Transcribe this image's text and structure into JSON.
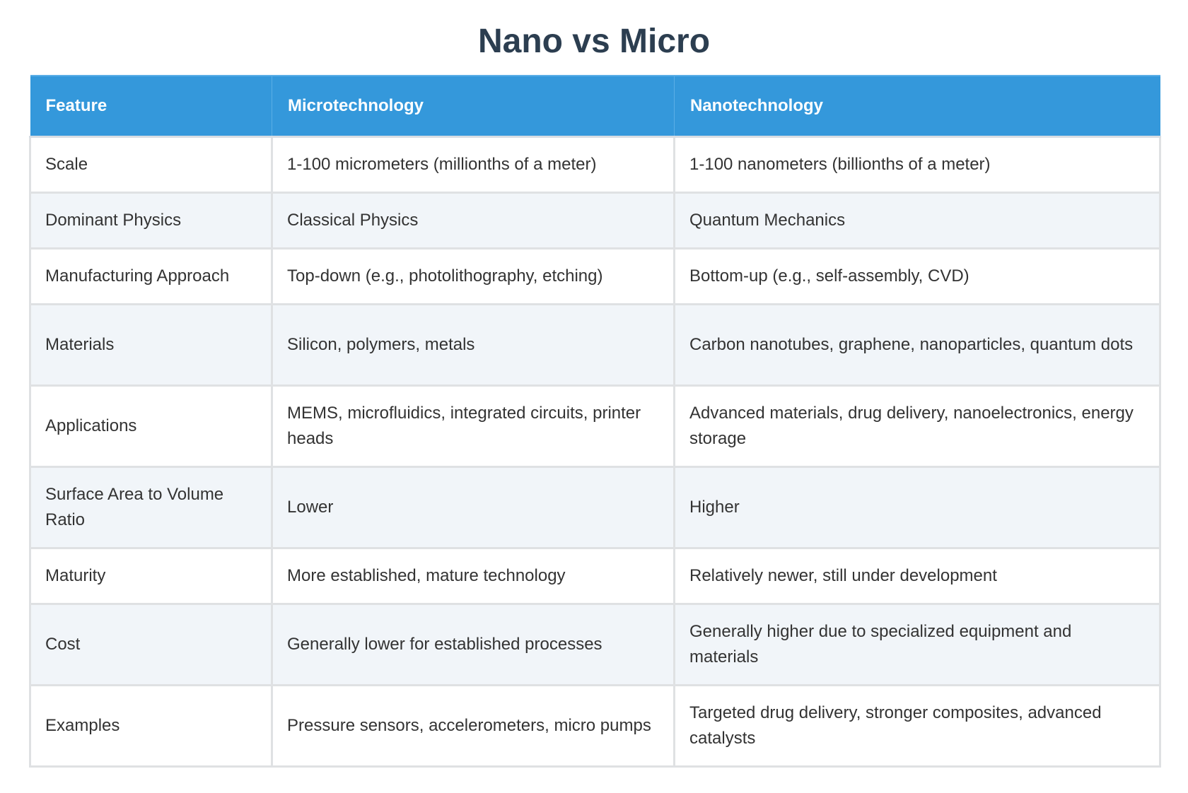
{
  "page": {
    "title": "Nano vs Micro"
  },
  "colors": {
    "title": "#2c3e50",
    "header_bg": "#3498db",
    "header_text": "#ffffff",
    "row_alt_bg": "#f1f5f9",
    "border": "#dfe1e3",
    "body_text": "#333333"
  },
  "table": {
    "headers": [
      "Feature",
      "Microtechnology",
      "Nanotechnology"
    ],
    "rows": [
      {
        "feature": "Scale",
        "micro": "1-100 micrometers (millionths of a meter)",
        "nano": "1-100 nanometers (billionths of a meter)"
      },
      {
        "feature": "Dominant Physics",
        "micro": "Classical Physics",
        "nano": "Quantum Mechanics"
      },
      {
        "feature": "Manufacturing Approach",
        "micro": "Top-down (e.g., photolithography, etching)",
        "nano": "Bottom-up (e.g., self-assembly, CVD)"
      },
      {
        "feature": "Materials",
        "micro": "Silicon, polymers, metals",
        "nano": "Carbon nanotubes, graphene, nanoparticles, quantum dots"
      },
      {
        "feature": "Applications",
        "micro": "MEMS, microfluidics, integrated circuits, printer heads",
        "nano": "Advanced materials, drug delivery, nanoelectronics, energy storage"
      },
      {
        "feature": "Surface Area to Volume Ratio",
        "micro": "Lower",
        "nano": "Higher"
      },
      {
        "feature": "Maturity",
        "micro": "More established, mature technology",
        "nano": "Relatively newer, still under development"
      },
      {
        "feature": "Cost",
        "micro": "Generally lower for established processes",
        "nano": "Generally higher due to specialized equipment and materials"
      },
      {
        "feature": "Examples",
        "micro": "Pressure sensors, accelerometers, micro pumps",
        "nano": "Targeted drug delivery, stronger composites, advanced catalysts"
      }
    ]
  }
}
